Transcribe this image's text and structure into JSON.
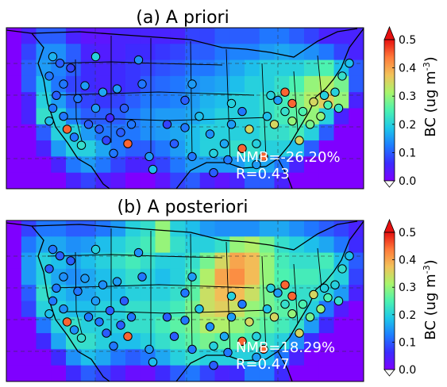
{
  "chart_data": [
    {
      "type": "heatmap",
      "title": "(a) A priori",
      "stats": {
        "nmb": "NMB=-26.20%",
        "r": "R=0.43"
      },
      "colorbar": {
        "label": "BC (ug m",
        "label_sup": "-3",
        "label_close": ")",
        "ticks": [
          0.0,
          0.1,
          0.2,
          0.3,
          0.4,
          0.5
        ],
        "tick_labels": [
          "0.0",
          "0.1",
          "0.2",
          "0.3",
          "0.4",
          "0.5"
        ],
        "range": [
          0.0,
          0.5
        ],
        "extend": "both"
      },
      "colormap": "jet",
      "field": [
        [
          0.0,
          0.05,
          0.1,
          0.1,
          0.05,
          0.03,
          0.03,
          0.05,
          0.05,
          0.05,
          0.05,
          0.05,
          0.08,
          0.08,
          0.1,
          0.1,
          0.1,
          0.12,
          0.12,
          0.1,
          0.08,
          0.05,
          0.05,
          0.05
        ],
        [
          0.0,
          0.08,
          0.14,
          0.14,
          0.1,
          0.05,
          0.04,
          0.05,
          0.06,
          0.06,
          0.07,
          0.08,
          0.1,
          0.1,
          0.12,
          0.13,
          0.13,
          0.15,
          0.16,
          0.15,
          0.14,
          0.12,
          0.08,
          0.05
        ],
        [
          0.0,
          0.1,
          0.15,
          0.13,
          0.1,
          0.06,
          0.05,
          0.06,
          0.07,
          0.08,
          0.09,
          0.1,
          0.12,
          0.12,
          0.14,
          0.16,
          0.18,
          0.2,
          0.2,
          0.2,
          0.22,
          0.25,
          0.18,
          0.1
        ],
        [
          0.0,
          0.1,
          0.18,
          0.12,
          0.08,
          0.06,
          0.05,
          0.06,
          0.07,
          0.1,
          0.11,
          0.12,
          0.14,
          0.15,
          0.16,
          0.18,
          0.2,
          0.2,
          0.22,
          0.25,
          0.3,
          0.32,
          0.28,
          0.1
        ],
        [
          0.0,
          0.05,
          0.2,
          0.15,
          0.1,
          0.08,
          0.07,
          0.08,
          0.1,
          0.12,
          0.12,
          0.13,
          0.15,
          0.17,
          0.18,
          0.2,
          0.2,
          0.22,
          0.24,
          0.28,
          0.32,
          0.36,
          0.3,
          0.05
        ],
        [
          0.0,
          0.05,
          0.22,
          0.2,
          0.13,
          0.1,
          0.1,
          0.1,
          0.12,
          0.14,
          0.15,
          0.15,
          0.16,
          0.18,
          0.2,
          0.2,
          0.2,
          0.22,
          0.24,
          0.26,
          0.3,
          0.2,
          0.05,
          0.0
        ],
        [
          0.0,
          0.0,
          0.1,
          0.2,
          0.2,
          0.15,
          0.12,
          0.12,
          0.12,
          0.14,
          0.15,
          0.16,
          0.18,
          0.2,
          0.2,
          0.2,
          0.2,
          0.22,
          0.22,
          0.24,
          0.2,
          0.1,
          0.0,
          0.0
        ],
        [
          0.0,
          0.0,
          0.05,
          0.15,
          0.2,
          0.2,
          0.16,
          0.12,
          0.1,
          0.1,
          0.12,
          0.15,
          0.18,
          0.2,
          0.2,
          0.22,
          0.22,
          0.2,
          0.2,
          0.18,
          0.1,
          0.0,
          0.0,
          0.0
        ],
        [
          0.0,
          0.0,
          0.0,
          0.05,
          0.12,
          0.15,
          0.12,
          0.08,
          0.05,
          0.05,
          0.08,
          0.12,
          0.15,
          0.15,
          0.15,
          0.15,
          0.18,
          0.16,
          0.12,
          0.05,
          0.0,
          0.0,
          0.0,
          0.0
        ],
        [
          0.0,
          0.0,
          0.0,
          0.0,
          0.05,
          0.08,
          0.05,
          0.03,
          0.0,
          0.0,
          0.03,
          0.08,
          0.1,
          0.05,
          0.03,
          0.05,
          0.1,
          0.1,
          0.05,
          0.0,
          0.0,
          0.0,
          0.0,
          0.0
        ]
      ],
      "sites": [
        [
          0.13,
          0.18,
          0.17
        ],
        [
          0.15,
          0.22,
          0.1
        ],
        [
          0.18,
          0.25,
          0.08
        ],
        [
          0.25,
          0.18,
          0.2
        ],
        [
          0.12,
          0.3,
          0.12
        ],
        [
          0.16,
          0.35,
          0.12
        ],
        [
          0.14,
          0.42,
          0.1
        ],
        [
          0.13,
          0.5,
          0.12
        ],
        [
          0.12,
          0.58,
          0.18
        ],
        [
          0.16,
          0.55,
          0.12
        ],
        [
          0.17,
          0.63,
          0.45
        ],
        [
          0.19,
          0.68,
          0.12
        ],
        [
          0.21,
          0.73,
          0.22
        ],
        [
          0.23,
          0.6,
          0.1
        ],
        [
          0.25,
          0.5,
          0.15
        ],
        [
          0.2,
          0.44,
          0.12
        ],
        [
          0.22,
          0.36,
          0.15
        ],
        [
          0.27,
          0.4,
          0.16
        ],
        [
          0.29,
          0.56,
          0.06
        ],
        [
          0.26,
          0.63,
          0.1
        ],
        [
          0.28,
          0.7,
          0.08
        ],
        [
          0.3,
          0.78,
          0.12
        ],
        [
          0.32,
          0.65,
          0.1
        ],
        [
          0.34,
          0.72,
          0.45
        ],
        [
          0.35,
          0.6,
          0.12
        ],
        [
          0.33,
          0.5,
          0.1
        ],
        [
          0.31,
          0.38,
          0.15
        ],
        [
          0.37,
          0.2,
          0.14
        ],
        [
          0.38,
          0.35,
          0.12
        ],
        [
          0.4,
          0.8,
          0.15
        ],
        [
          0.41,
          0.88,
          0.18
        ],
        [
          0.45,
          0.6,
          0.08
        ],
        [
          0.47,
          0.72,
          0.1
        ],
        [
          0.5,
          0.62,
          0.12
        ],
        [
          0.5,
          0.45,
          0.1
        ],
        [
          0.52,
          0.35,
          0.15
        ],
        [
          0.54,
          0.55,
          0.18
        ],
        [
          0.57,
          0.66,
          0.14
        ],
        [
          0.58,
          0.78,
          0.2
        ],
        [
          0.52,
          0.8,
          0.12
        ],
        [
          0.61,
          0.72,
          0.16
        ],
        [
          0.63,
          0.6,
          0.15
        ],
        [
          0.63,
          0.47,
          0.2
        ],
        [
          0.66,
          0.52,
          0.12
        ],
        [
          0.68,
          0.63,
          0.35
        ],
        [
          0.7,
          0.72,
          0.2
        ],
        [
          0.72,
          0.8,
          0.45
        ],
        [
          0.66,
          0.75,
          0.45
        ],
        [
          0.73,
          0.55,
          0.18
        ],
        [
          0.75,
          0.6,
          0.35
        ],
        [
          0.76,
          0.45,
          0.15
        ],
        [
          0.78,
          0.52,
          0.22
        ],
        [
          0.8,
          0.58,
          0.3
        ],
        [
          0.82,
          0.7,
          0.35
        ],
        [
          0.85,
          0.6,
          0.28
        ],
        [
          0.88,
          0.55,
          0.3
        ],
        [
          0.9,
          0.48,
          0.25
        ],
        [
          0.92,
          0.4,
          0.2
        ],
        [
          0.94,
          0.3,
          0.22
        ],
        [
          0.96,
          0.22,
          0.18
        ],
        [
          0.89,
          0.42,
          0.2
        ],
        [
          0.93,
          0.5,
          0.22
        ],
        [
          0.78,
          0.4,
          0.45
        ],
        [
          0.8,
          0.47,
          0.45
        ],
        [
          0.83,
          0.52,
          0.25
        ],
        [
          0.86,
          0.46,
          0.35
        ],
        [
          0.74,
          0.42,
          0.2
        ],
        [
          0.62,
          0.82,
          0.12
        ],
        [
          0.58,
          0.9,
          0.1
        ],
        [
          0.7,
          0.85,
          0.15
        ]
      ]
    },
    {
      "type": "heatmap",
      "title": "(b) A posteriori",
      "stats": {
        "nmb": "NMB=18.29%",
        "r": "R=0.47"
      },
      "colorbar": {
        "label": "BC (ug m",
        "label_sup": "-3",
        "label_close": ")",
        "ticks": [
          0.0,
          0.1,
          0.2,
          0.3,
          0.4,
          0.5
        ],
        "tick_labels": [
          "0.0",
          "0.1",
          "0.2",
          "0.3",
          "0.4",
          "0.5"
        ],
        "range": [
          0.0,
          0.5
        ],
        "extend": "both"
      },
      "colormap": "jet",
      "field": [
        [
          0.0,
          0.08,
          0.12,
          0.12,
          0.1,
          0.1,
          0.12,
          0.15,
          0.2,
          0.22,
          0.3,
          0.2,
          0.18,
          0.15,
          0.14,
          0.14,
          0.14,
          0.16,
          0.16,
          0.14,
          0.12,
          0.1,
          0.08,
          0.05
        ],
        [
          0.0,
          0.12,
          0.16,
          0.16,
          0.14,
          0.15,
          0.18,
          0.2,
          0.22,
          0.24,
          0.3,
          0.22,
          0.2,
          0.2,
          0.22,
          0.3,
          0.32,
          0.28,
          0.22,
          0.2,
          0.18,
          0.16,
          0.12,
          0.06
        ],
        [
          0.0,
          0.15,
          0.2,
          0.18,
          0.16,
          0.18,
          0.2,
          0.22,
          0.24,
          0.22,
          0.2,
          0.2,
          0.22,
          0.28,
          0.35,
          0.4,
          0.38,
          0.3,
          0.24,
          0.22,
          0.22,
          0.24,
          0.18,
          0.1
        ],
        [
          0.0,
          0.15,
          0.2,
          0.16,
          0.14,
          0.16,
          0.18,
          0.2,
          0.22,
          0.2,
          0.18,
          0.2,
          0.24,
          0.32,
          0.4,
          0.42,
          0.38,
          0.3,
          0.25,
          0.24,
          0.24,
          0.22,
          0.2,
          0.08
        ],
        [
          0.0,
          0.1,
          0.22,
          0.18,
          0.16,
          0.16,
          0.18,
          0.18,
          0.2,
          0.2,
          0.2,
          0.22,
          0.26,
          0.34,
          0.38,
          0.38,
          0.34,
          0.28,
          0.24,
          0.22,
          0.22,
          0.2,
          0.15,
          0.05
        ],
        [
          0.0,
          0.08,
          0.2,
          0.2,
          0.18,
          0.18,
          0.2,
          0.2,
          0.22,
          0.22,
          0.22,
          0.24,
          0.28,
          0.34,
          0.36,
          0.34,
          0.3,
          0.28,
          0.26,
          0.24,
          0.2,
          0.12,
          0.04,
          0.0
        ],
        [
          0.0,
          0.0,
          0.12,
          0.2,
          0.22,
          0.2,
          0.2,
          0.2,
          0.22,
          0.22,
          0.24,
          0.26,
          0.28,
          0.32,
          0.32,
          0.3,
          0.28,
          0.26,
          0.24,
          0.22,
          0.15,
          0.06,
          0.0,
          0.0
        ],
        [
          0.0,
          0.0,
          0.06,
          0.16,
          0.22,
          0.22,
          0.2,
          0.18,
          0.18,
          0.2,
          0.22,
          0.24,
          0.26,
          0.28,
          0.26,
          0.26,
          0.24,
          0.22,
          0.2,
          0.14,
          0.06,
          0.0,
          0.0,
          0.0
        ],
        [
          0.0,
          0.0,
          0.0,
          0.06,
          0.14,
          0.18,
          0.16,
          0.12,
          0.1,
          0.12,
          0.16,
          0.2,
          0.22,
          0.2,
          0.2,
          0.2,
          0.2,
          0.18,
          0.12,
          0.05,
          0.0,
          0.0,
          0.0,
          0.0
        ],
        [
          0.0,
          0.0,
          0.0,
          0.0,
          0.06,
          0.1,
          0.08,
          0.05,
          0.02,
          0.02,
          0.06,
          0.1,
          0.12,
          0.08,
          0.05,
          0.06,
          0.12,
          0.12,
          0.06,
          0.0,
          0.0,
          0.0,
          0.0,
          0.0
        ]
      ],
      "sites": [
        [
          0.13,
          0.18,
          0.12
        ],
        [
          0.15,
          0.22,
          0.1
        ],
        [
          0.18,
          0.25,
          0.1
        ],
        [
          0.25,
          0.18,
          0.2
        ],
        [
          0.12,
          0.3,
          0.1
        ],
        [
          0.16,
          0.35,
          0.14
        ],
        [
          0.14,
          0.42,
          0.12
        ],
        [
          0.13,
          0.5,
          0.12
        ],
        [
          0.12,
          0.58,
          0.18
        ],
        [
          0.16,
          0.55,
          0.14
        ],
        [
          0.17,
          0.63,
          0.45
        ],
        [
          0.19,
          0.68,
          0.14
        ],
        [
          0.21,
          0.73,
          0.22
        ],
        [
          0.23,
          0.6,
          0.12
        ],
        [
          0.25,
          0.5,
          0.15
        ],
        [
          0.2,
          0.44,
          0.12
        ],
        [
          0.22,
          0.36,
          0.15
        ],
        [
          0.27,
          0.4,
          0.14
        ],
        [
          0.29,
          0.56,
          0.1
        ],
        [
          0.26,
          0.63,
          0.12
        ],
        [
          0.28,
          0.7,
          0.1
        ],
        [
          0.3,
          0.78,
          0.12
        ],
        [
          0.32,
          0.65,
          0.1
        ],
        [
          0.34,
          0.72,
          0.45
        ],
        [
          0.35,
          0.6,
          0.12
        ],
        [
          0.33,
          0.5,
          0.1
        ],
        [
          0.31,
          0.38,
          0.15
        ],
        [
          0.37,
          0.2,
          0.14
        ],
        [
          0.38,
          0.35,
          0.12
        ],
        [
          0.4,
          0.8,
          0.15
        ],
        [
          0.41,
          0.88,
          0.18
        ],
        [
          0.45,
          0.6,
          0.1
        ],
        [
          0.47,
          0.72,
          0.1
        ],
        [
          0.5,
          0.62,
          0.12
        ],
        [
          0.5,
          0.45,
          0.12
        ],
        [
          0.52,
          0.35,
          0.15
        ],
        [
          0.54,
          0.55,
          0.18
        ],
        [
          0.57,
          0.66,
          0.14
        ],
        [
          0.58,
          0.78,
          0.2
        ],
        [
          0.52,
          0.8,
          0.12
        ],
        [
          0.61,
          0.72,
          0.16
        ],
        [
          0.63,
          0.6,
          0.15
        ],
        [
          0.63,
          0.47,
          0.2
        ],
        [
          0.66,
          0.52,
          0.12
        ],
        [
          0.68,
          0.63,
          0.35
        ],
        [
          0.7,
          0.72,
          0.2
        ],
        [
          0.72,
          0.8,
          0.45
        ],
        [
          0.66,
          0.75,
          0.45
        ],
        [
          0.73,
          0.55,
          0.18
        ],
        [
          0.75,
          0.6,
          0.35
        ],
        [
          0.76,
          0.45,
          0.15
        ],
        [
          0.78,
          0.52,
          0.22
        ],
        [
          0.8,
          0.58,
          0.3
        ],
        [
          0.82,
          0.7,
          0.35
        ],
        [
          0.85,
          0.6,
          0.28
        ],
        [
          0.88,
          0.55,
          0.3
        ],
        [
          0.9,
          0.48,
          0.25
        ],
        [
          0.92,
          0.4,
          0.2
        ],
        [
          0.94,
          0.3,
          0.22
        ],
        [
          0.96,
          0.22,
          0.18
        ],
        [
          0.89,
          0.42,
          0.2
        ],
        [
          0.93,
          0.5,
          0.22
        ],
        [
          0.78,
          0.4,
          0.45
        ],
        [
          0.8,
          0.47,
          0.45
        ],
        [
          0.83,
          0.52,
          0.25
        ],
        [
          0.86,
          0.46,
          0.35
        ],
        [
          0.74,
          0.42,
          0.2
        ],
        [
          0.62,
          0.82,
          0.12
        ],
        [
          0.58,
          0.9,
          0.1
        ],
        [
          0.7,
          0.85,
          0.15
        ]
      ]
    }
  ]
}
